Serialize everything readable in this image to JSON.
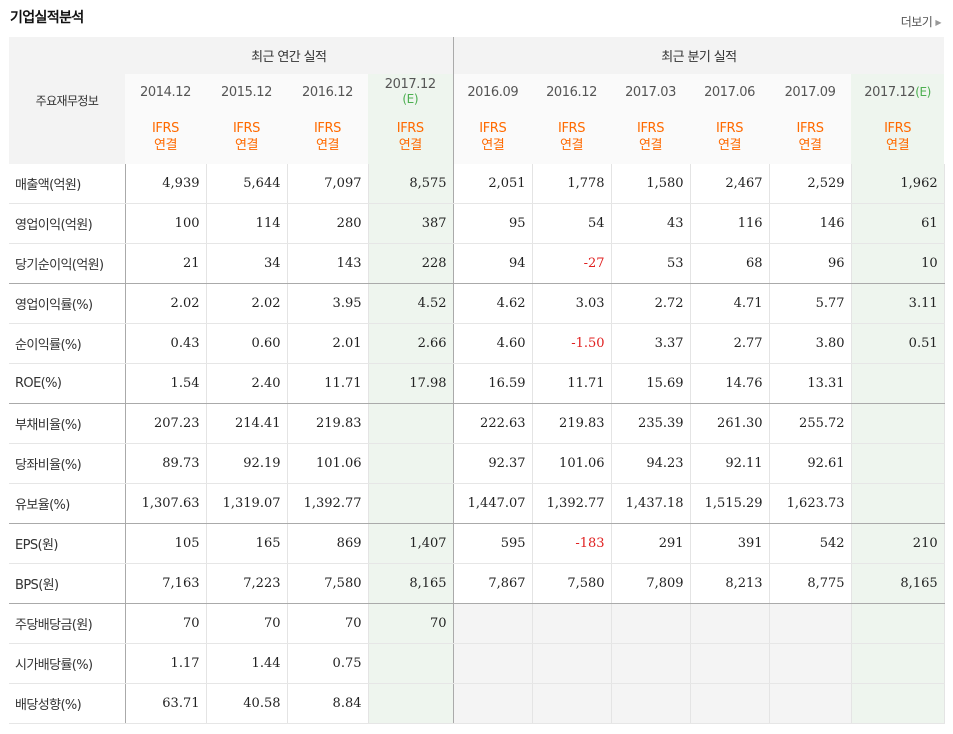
{
  "title": "기업실적분석",
  "more_label": "더보기",
  "header": {
    "row_label": "주요재무정보",
    "annual_title": "최근 연간 실적",
    "quarter_title": "최근 분기 실적",
    "periods": [
      {
        "date": "2014.12",
        "est": "",
        "ifrs": "IFRS",
        "basis": "연결"
      },
      {
        "date": "2015.12",
        "est": "",
        "ifrs": "IFRS",
        "basis": "연결"
      },
      {
        "date": "2016.12",
        "est": "",
        "ifrs": "IFRS",
        "basis": "연결"
      },
      {
        "date": "2017.12",
        "est": "(E)",
        "ifrs": "IFRS",
        "basis": "연결"
      },
      {
        "date": "2016.09",
        "est": "",
        "ifrs": "IFRS",
        "basis": "연결"
      },
      {
        "date": "2016.12",
        "est": "",
        "ifrs": "IFRS",
        "basis": "연결"
      },
      {
        "date": "2017.03",
        "est": "",
        "ifrs": "IFRS",
        "basis": "연결"
      },
      {
        "date": "2017.06",
        "est": "",
        "ifrs": "IFRS",
        "basis": "연결"
      },
      {
        "date": "2017.09",
        "est": "",
        "ifrs": "IFRS",
        "basis": "연결"
      },
      {
        "date": "2017.12",
        "est": "(E)",
        "ifrs": "IFRS",
        "basis": "연결"
      }
    ]
  },
  "rows": [
    {
      "label": "매출액(억원)",
      "values": [
        "4,939",
        "5,644",
        "7,097",
        "8,575",
        "2,051",
        "1,778",
        "1,580",
        "2,467",
        "2,529",
        "1,962"
      ]
    },
    {
      "label": "영업이익(억원)",
      "values": [
        "100",
        "114",
        "280",
        "387",
        "95",
        "54",
        "43",
        "116",
        "146",
        "61"
      ]
    },
    {
      "label": "당기순이익(억원)",
      "values": [
        "21",
        "34",
        "143",
        "228",
        "94",
        "-27",
        "53",
        "68",
        "96",
        "10"
      ]
    },
    {
      "label": "영업이익률(%)",
      "values": [
        "2.02",
        "2.02",
        "3.95",
        "4.52",
        "4.62",
        "3.03",
        "2.72",
        "4.71",
        "5.77",
        "3.11"
      ]
    },
    {
      "label": "순이익률(%)",
      "values": [
        "0.43",
        "0.60",
        "2.01",
        "2.66",
        "4.60",
        "-1.50",
        "3.37",
        "2.77",
        "3.80",
        "0.51"
      ]
    },
    {
      "label": "ROE(%)",
      "values": [
        "1.54",
        "2.40",
        "11.71",
        "17.98",
        "16.59",
        "11.71",
        "15.69",
        "14.76",
        "13.31",
        ""
      ]
    },
    {
      "label": "부채비율(%)",
      "values": [
        "207.23",
        "214.41",
        "219.83",
        "",
        "222.63",
        "219.83",
        "235.39",
        "261.30",
        "255.72",
        ""
      ]
    },
    {
      "label": "당좌비율(%)",
      "values": [
        "89.73",
        "92.19",
        "101.06",
        "",
        "92.37",
        "101.06",
        "94.23",
        "92.11",
        "92.61",
        ""
      ]
    },
    {
      "label": "유보율(%)",
      "values": [
        "1,307.63",
        "1,319.07",
        "1,392.77",
        "",
        "1,447.07",
        "1,392.77",
        "1,437.18",
        "1,515.29",
        "1,623.73",
        ""
      ]
    },
    {
      "label": "EPS(원)",
      "values": [
        "105",
        "165",
        "869",
        "1,407",
        "595",
        "-183",
        "291",
        "391",
        "542",
        "210"
      ]
    },
    {
      "label": "BPS(원)",
      "values": [
        "7,163",
        "7,223",
        "7,580",
        "8,165",
        "7,867",
        "7,580",
        "7,809",
        "8,213",
        "8,775",
        "8,165"
      ]
    },
    {
      "label": "주당배당금(원)",
      "values": [
        "70",
        "70",
        "70",
        "70",
        "",
        "",
        "",
        "",
        "",
        ""
      ]
    },
    {
      "label": "시가배당률(%)",
      "values": [
        "1.17",
        "1.44",
        "0.75",
        "",
        "",
        "",
        "",
        "",
        "",
        ""
      ]
    },
    {
      "label": "배당성향(%)",
      "values": [
        "63.71",
        "40.58",
        "8.84",
        "",
        "",
        "",
        "",
        "",
        "",
        ""
      ]
    }
  ],
  "group_end_rows": [
    2,
    5,
    8,
    10
  ],
  "empty_shaded_from_row": 11,
  "colors": {
    "ifrs": "#ff6a00",
    "negative": "#e02020",
    "estimate_bg": "#eef5ee",
    "estimate_mark": "#4caf50"
  }
}
